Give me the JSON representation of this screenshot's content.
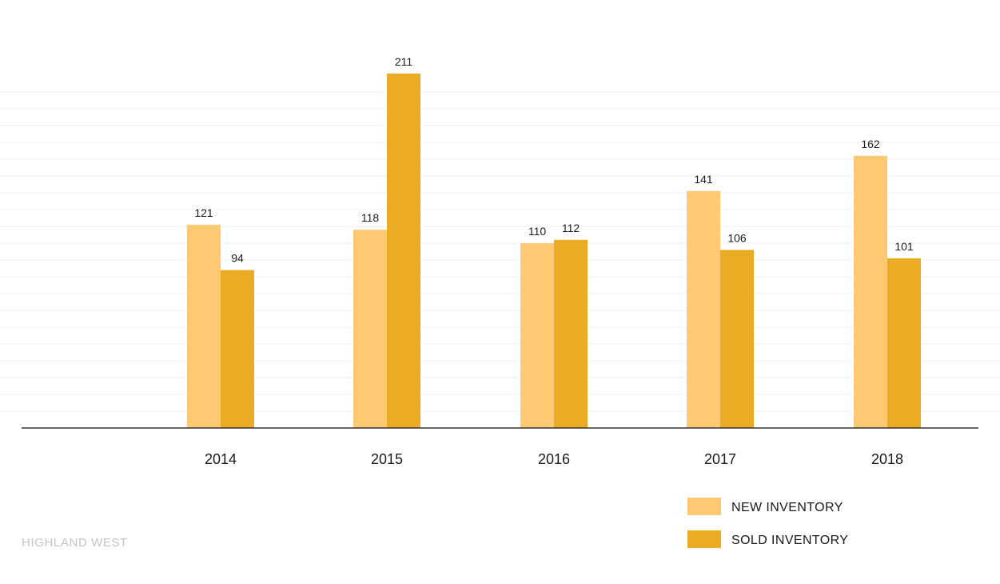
{
  "colors": {
    "new_inventory": "#fdc972",
    "sold_inventory": "#ebab24",
    "axis": "#333333",
    "grid": "#f1f1f1",
    "text": "#1a1a1a",
    "footer": "#c4c4c4"
  },
  "footer": {
    "label": "HIGHLAND WEST"
  },
  "legend": {
    "items": [
      {
        "label": "NEW INVENTORY",
        "color": "#fdc972"
      },
      {
        "label": "SOLD INVENTORY",
        "color": "#ebab24"
      }
    ]
  },
  "chart_data": {
    "type": "bar",
    "categories": [
      "2014",
      "2015",
      "2016",
      "2017",
      "2018"
    ],
    "series": [
      {
        "name": "NEW INVENTORY",
        "values": [
          121,
          118,
          110,
          141,
          162
        ],
        "color": "#fdc972"
      },
      {
        "name": "SOLD INVENTORY",
        "values": [
          94,
          211,
          112,
          106,
          101
        ],
        "color": "#ebab24"
      }
    ],
    "title": "",
    "xlabel": "",
    "ylabel": "",
    "ylim": [
      0,
      220
    ],
    "grid": true,
    "data_labels": true,
    "legend_position": "bottom-right"
  }
}
